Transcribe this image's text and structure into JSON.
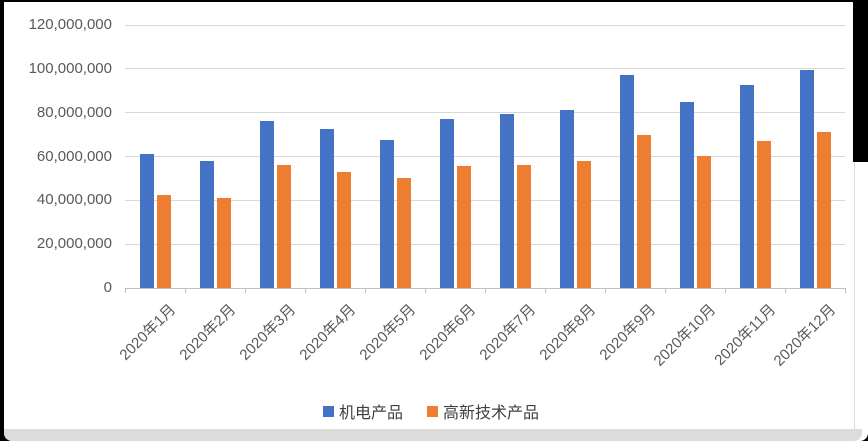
{
  "chart_data": {
    "type": "bar",
    "title": "",
    "categories": [
      "2020年1月",
      "2020年2月",
      "2020年3月",
      "2020年4月",
      "2020年5月",
      "2020年6月",
      "2020年7月",
      "2020年8月",
      "2020年9月",
      "2020年10月",
      "2020年11月",
      "2020年12月"
    ],
    "series": [
      {
        "name": "机电产品",
        "color": "#4472C4",
        "values": [
          61000000,
          58000000,
          76000000,
          72500000,
          67500000,
          77000000,
          79500000,
          81000000,
          97000000,
          85000000,
          92500000,
          99500000
        ]
      },
      {
        "name": "高新技术产品",
        "color": "#ED7D31",
        "values": [
          42500000,
          41000000,
          56000000,
          53000000,
          50000000,
          55500000,
          56000000,
          58000000,
          70000000,
          60000000,
          67000000,
          71000000
        ]
      }
    ],
    "xlabel": "",
    "ylabel": "",
    "ylim": [
      0,
      120000000
    ],
    "y_tick_step": 20000000,
    "y_tick_labels": [
      "0",
      "20,000,000",
      "40,000,000",
      "60,000,000",
      "80,000,000",
      "100,000,000",
      "120,000,000"
    ],
    "grid": true,
    "legend_position": "bottom"
  },
  "styles": {
    "series_blue": "#4472C4",
    "series_orange": "#ED7D31",
    "grid_color": "#D9D9D9",
    "axis_color": "#BFBFBF",
    "tick_label_color": "#595959",
    "legend_text_color": "#404040",
    "background": "#FFFFFF",
    "frame_color": "#000000"
  }
}
